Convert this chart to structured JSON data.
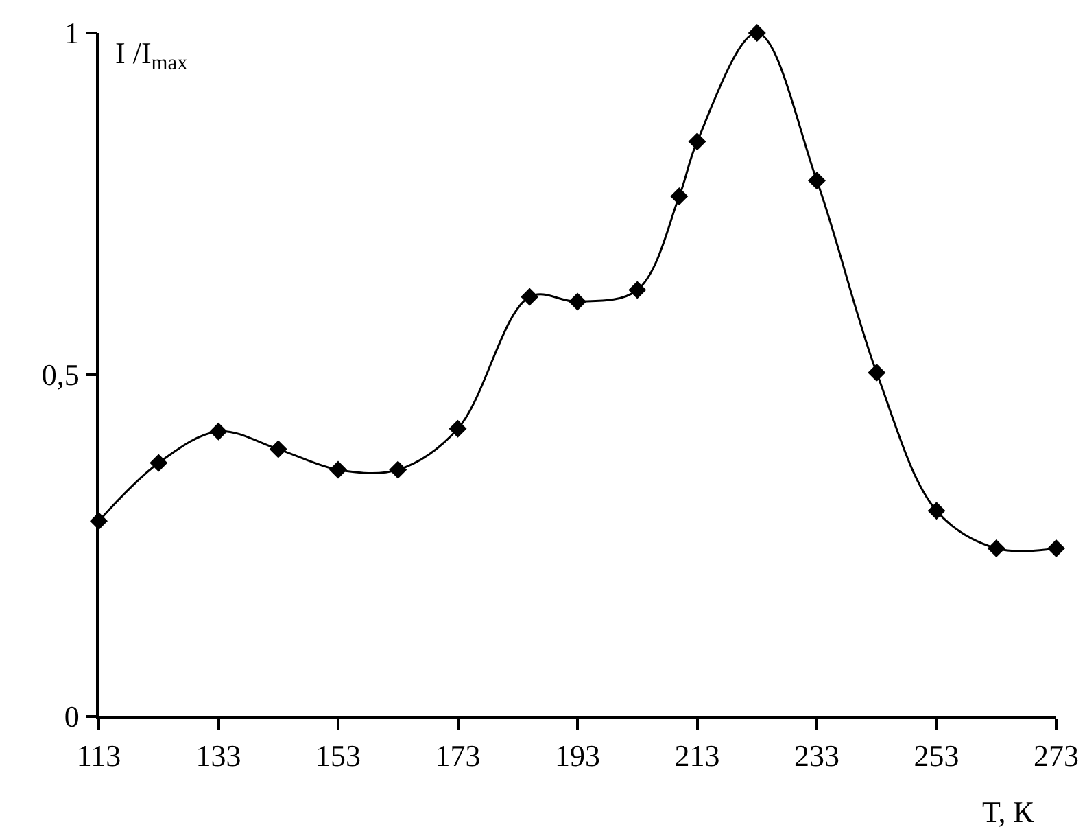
{
  "chart_data": {
    "type": "line",
    "xlabel": "T, К",
    "ylabel": "I /I$_{max}$",
    "x": [
      113,
      123,
      133,
      143,
      153,
      163,
      173,
      185,
      193,
      203,
      210,
      213,
      223,
      233,
      243,
      253,
      263,
      273
    ],
    "series": [
      {
        "color": "#000000",
        "values": [
          0.286,
          0.371,
          0.417,
          0.391,
          0.361,
          0.361,
          0.421,
          0.614,
          0.607,
          0.624,
          0.761,
          0.841,
          1,
          0.784,
          0.503,
          0.301,
          0.246,
          0.246
        ]
      }
    ],
    "xlim": [
      113,
      273
    ],
    "xticks": [
      113,
      133,
      153,
      173,
      193,
      213,
      233,
      253,
      273
    ],
    "ylim": [
      0,
      1
    ],
    "yticks": [
      0,
      {
        "value": 0.5,
        "label": "0,5"
      },
      1
    ],
    "grid": false,
    "legend": false,
    "marker": "diamond",
    "line_style": "solid"
  }
}
